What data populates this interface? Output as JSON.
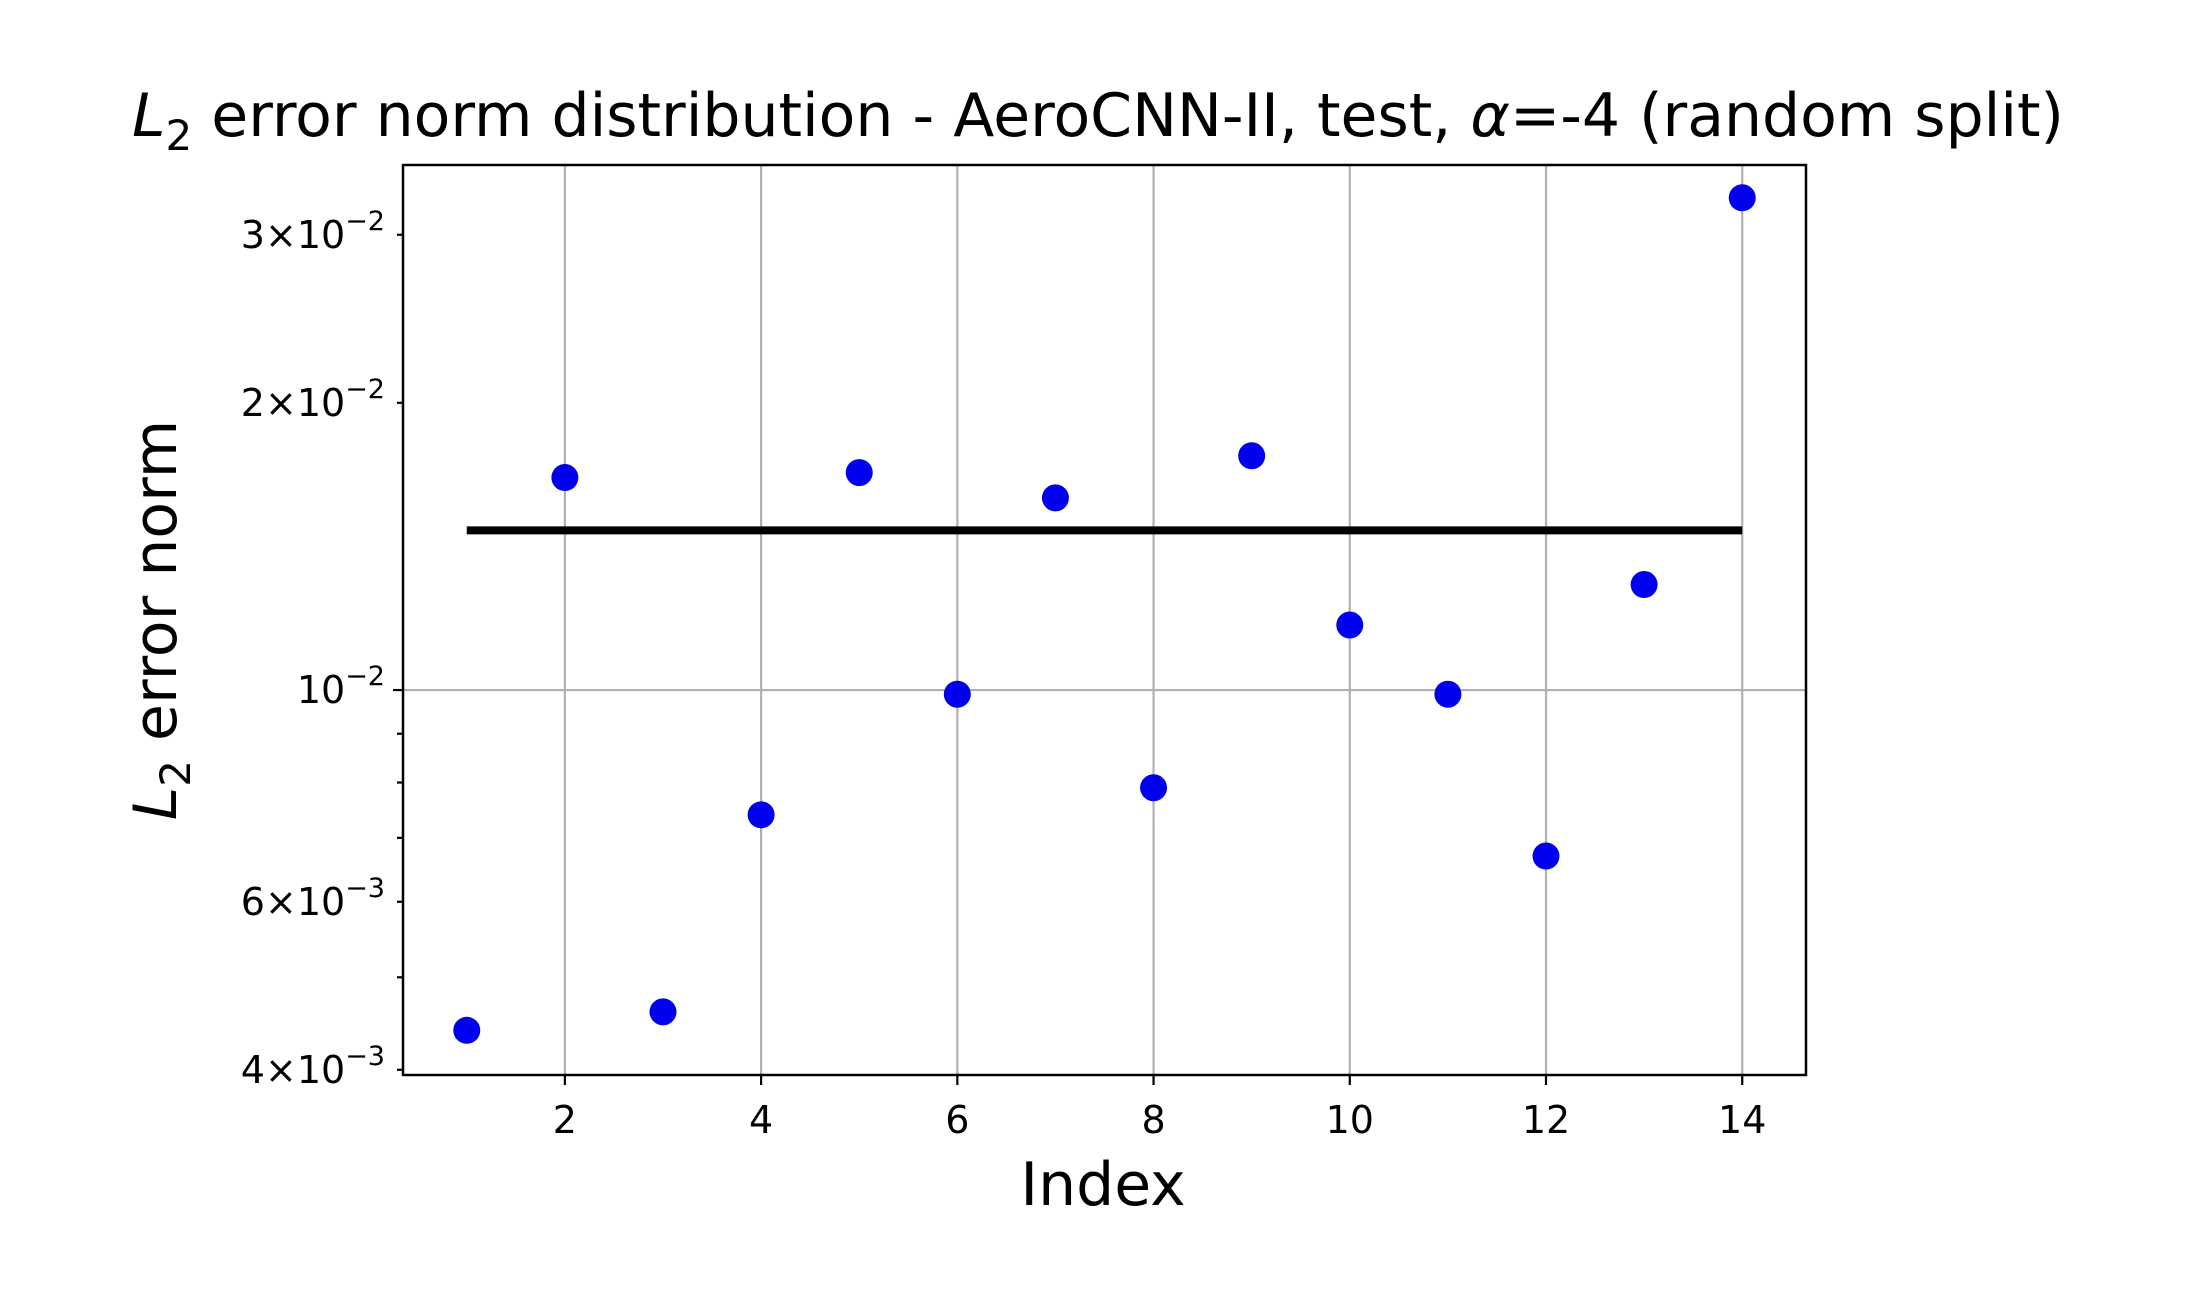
{
  "chart_data": {
    "type": "scatter",
    "title": {
      "prefix": "L",
      "subscript": "2",
      "text": " error norm distribution - AeroCNN-II, test, ",
      "alpha_symbol": "α",
      "alpha_text": "=-4 (random split)"
    },
    "xlabel": "Index",
    "ylabel": {
      "prefix": "L",
      "subscript": "2",
      "text": " error norm"
    },
    "y_scale": "log",
    "grid": true,
    "xlim": [
      0.35,
      14.65
    ],
    "ylim": [
      0.00395,
      0.0355
    ],
    "x_ticks": [
      {
        "value": 2,
        "label": "2"
      },
      {
        "value": 4,
        "label": "4"
      },
      {
        "value": 6,
        "label": "6"
      },
      {
        "value": 8,
        "label": "8"
      },
      {
        "value": 10,
        "label": "10"
      },
      {
        "value": 12,
        "label": "12"
      },
      {
        "value": 14,
        "label": "14"
      }
    ],
    "y_ticks": [
      {
        "value": 0.004,
        "mantissa": "4",
        "base": "10",
        "exponent": "−3",
        "major": false
      },
      {
        "value": 0.006,
        "mantissa": "6",
        "base": "10",
        "exponent": "−3",
        "major": false
      },
      {
        "value": 0.01,
        "mantissa": "",
        "base": "10",
        "exponent": "−2",
        "major": true
      },
      {
        "value": 0.02,
        "mantissa": "2",
        "base": "10",
        "exponent": "−2",
        "major": false
      },
      {
        "value": 0.03,
        "mantissa": "3",
        "base": "10",
        "exponent": "−2",
        "major": false
      }
    ],
    "y_minor_ticks_unlabeled": [
      0.005,
      0.007,
      0.008,
      0.009
    ],
    "series": [
      {
        "kind": "points",
        "color": "#0000ee",
        "x": [
          1,
          2,
          3,
          4,
          5,
          6,
          7,
          8,
          9,
          10,
          11,
          12,
          13,
          14
        ],
        "y": [
          0.0044,
          0.0167,
          0.0046,
          0.0074,
          0.0169,
          0.0099,
          0.0159,
          0.0079,
          0.0176,
          0.0117,
          0.0099,
          0.0067,
          0.0129,
          0.0328
        ]
      },
      {
        "kind": "hline",
        "color": "#000000",
        "x_from": 1,
        "x_to": 14,
        "y": 0.0147
      }
    ]
  }
}
